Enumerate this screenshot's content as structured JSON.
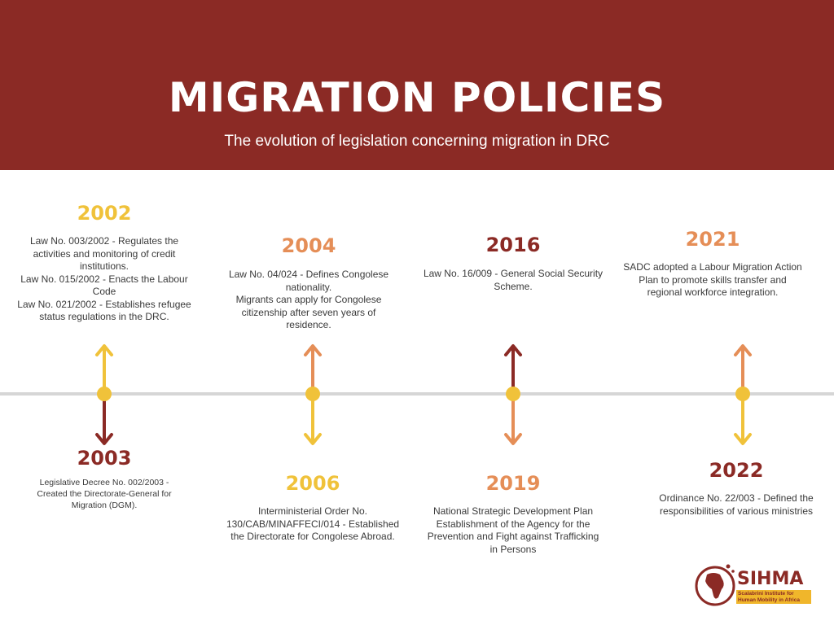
{
  "colors": {
    "header_bg": "#8b2a25",
    "yellow": "#f0c23a",
    "orange": "#e58e57",
    "dark_red": "#8b2a25",
    "axis": "#d6d6d6"
  },
  "header": {
    "title": "MIGRATION POLICIES",
    "subtitle": "The evolution of legislation concerning migration in DRC"
  },
  "events": {
    "e2002": {
      "year": "2002",
      "lines": [
        "Law No. 003/2002 - Regulates the",
        "activities and monitoring of credit",
        "institutions.",
        "Law No. 015/2002  - Enacts the Labour",
        "Code",
        "Law No. 021/2002 - Establishes refugee",
        "status regulations in the DRC."
      ]
    },
    "e2003": {
      "year": "2003",
      "lines": [
        "Legislative Decree No. 002/2003 -",
        "Created the Directorate-General for",
        "Migration (DGM)."
      ]
    },
    "e2004": {
      "year": "2004",
      "lines": [
        "Law No. 04/024 - Defines Congolese",
        "nationality.",
        "Migrants can apply for Congolese",
        "citizenship after seven years of",
        "residence."
      ]
    },
    "e2006": {
      "year": "2006",
      "lines": [
        "Interministerial Order No.",
        "130/CAB/MINAFFECI/014 - Established",
        "the Directorate for Congolese Abroad."
      ]
    },
    "e2016": {
      "year": "2016",
      "lines": [
        "Law No. 16/009 - General Social Security",
        "Scheme."
      ]
    },
    "e2019": {
      "year": "2019",
      "lines": [
        "National Strategic Development Plan",
        "Establishment of the Agency for the",
        "Prevention and Fight against Trafficking",
        "in Persons"
      ]
    },
    "e2021": {
      "year": "2021",
      "lines": [
        "SADC adopted a Labour Migration Action",
        "Plan to promote skills transfer and",
        "regional workforce integration."
      ]
    },
    "e2022": {
      "year": "2022",
      "lines": [
        "Ordinance No. 22/003 - Defined the",
        "responsibilities of various ministries"
      ]
    }
  },
  "logo": {
    "name": "SIHMA",
    "tagline_1": "Scalabrini Institute for",
    "tagline_2": "Human Mobility in Africa"
  }
}
